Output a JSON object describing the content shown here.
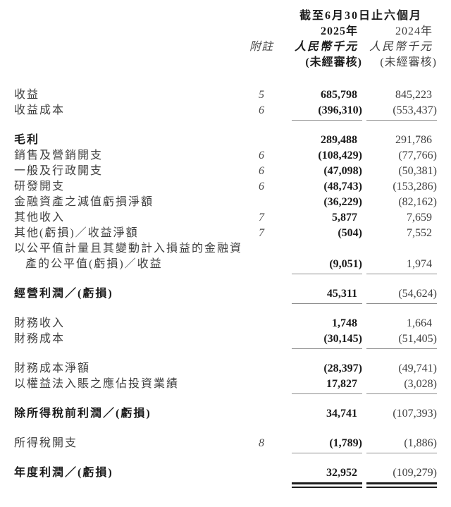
{
  "page": {
    "background": "#ffffff",
    "text_color": "#3f3f3f",
    "emphasis_color": "#1b1b1b",
    "single_rule_color": "#8f8f8f",
    "double_rule_color": "#1d1d1d"
  },
  "header": {
    "period_title": "截至6月30日止六個月",
    "note_col_label": "附註",
    "columns": [
      {
        "year": "2025年",
        "unit": "人民幣千元",
        "status": "(未經審核)",
        "emphasis": true
      },
      {
        "year": "2024年",
        "unit": "人民幣千元",
        "status": "(未經審核)",
        "emphasis": false
      }
    ]
  },
  "rows": [
    {
      "label": "收益",
      "note": "5",
      "v2025": "685,798",
      "v2024": "845,223",
      "bold": false,
      "rule": "",
      "gap": false
    },
    {
      "label": "收益成本",
      "note": "6",
      "v2025": "(396,310)",
      "v2024": "(553,437)",
      "bold": false,
      "rule": "single",
      "gap": false
    },
    {
      "label": "毛利",
      "note": "",
      "v2025": "289,488",
      "v2024": "291,786",
      "bold": true,
      "rule": "",
      "gap": true
    },
    {
      "label": "銷售及營銷開支",
      "note": "6",
      "v2025": "(108,429)",
      "v2024": "(77,766)",
      "bold": false,
      "rule": "",
      "gap": false
    },
    {
      "label": "一般及行政開支",
      "note": "6",
      "v2025": "(47,098)",
      "v2024": "(50,381)",
      "bold": false,
      "rule": "",
      "gap": false
    },
    {
      "label": "研發開支",
      "note": "6",
      "v2025": "(48,743)",
      "v2024": "(153,286)",
      "bold": false,
      "rule": "",
      "gap": false
    },
    {
      "label": "金融資產之減值虧損淨額",
      "note": "",
      "v2025": "(36,229)",
      "v2024": "(82,162)",
      "bold": false,
      "rule": "",
      "gap": false
    },
    {
      "label": "其他收入",
      "note": "7",
      "v2025": "5,877",
      "v2024": "7,659",
      "bold": false,
      "rule": "",
      "gap": false
    },
    {
      "label": "其他(虧損)／收益淨額",
      "note": "7",
      "v2025": "(504)",
      "v2024": "7,552",
      "bold": false,
      "rule": "",
      "gap": false
    },
    {
      "label": "以公平值計量且其變動計入損益的金融資",
      "label2": "產的公平值(虧損)／收益",
      "note": "",
      "v2025": "(9,051)",
      "v2024": "1,974",
      "bold": false,
      "rule": "single",
      "gap": false
    },
    {
      "label": "經營利潤／(虧損)",
      "note": "",
      "v2025": "45,311",
      "v2024": "(54,624)",
      "bold": true,
      "rule": "single",
      "gap": true
    },
    {
      "label": "財務收入",
      "note": "",
      "v2025": "1,748",
      "v2024": "1,664",
      "bold": false,
      "rule": "",
      "gap": true
    },
    {
      "label": "財務成本",
      "note": "",
      "v2025": "(30,145)",
      "v2024": "(51,405)",
      "bold": false,
      "rule": "single",
      "gap": false
    },
    {
      "label": "財務成本淨額",
      "note": "",
      "v2025": "(28,397)",
      "v2024": "(49,741)",
      "bold": false,
      "rule": "",
      "gap": true
    },
    {
      "label": "以權益法入賬之應佔投資業績",
      "note": "",
      "v2025": "17,827",
      "v2024": "(3,028)",
      "bold": false,
      "rule": "single",
      "gap": false
    },
    {
      "label": "除所得稅前利潤／(虧損)",
      "note": "",
      "v2025": "34,741",
      "v2024": "(107,393)",
      "bold": true,
      "rule": "",
      "gap": true
    },
    {
      "label": "所得稅開支",
      "note": "8",
      "v2025": "(1,789)",
      "v2024": "(1,886)",
      "bold": false,
      "rule": "single",
      "gap": true
    },
    {
      "label": "年度利潤／(虧損)",
      "note": "",
      "v2025": "32,952",
      "v2024": "(109,279)",
      "bold": true,
      "rule": "double",
      "gap": true
    }
  ]
}
